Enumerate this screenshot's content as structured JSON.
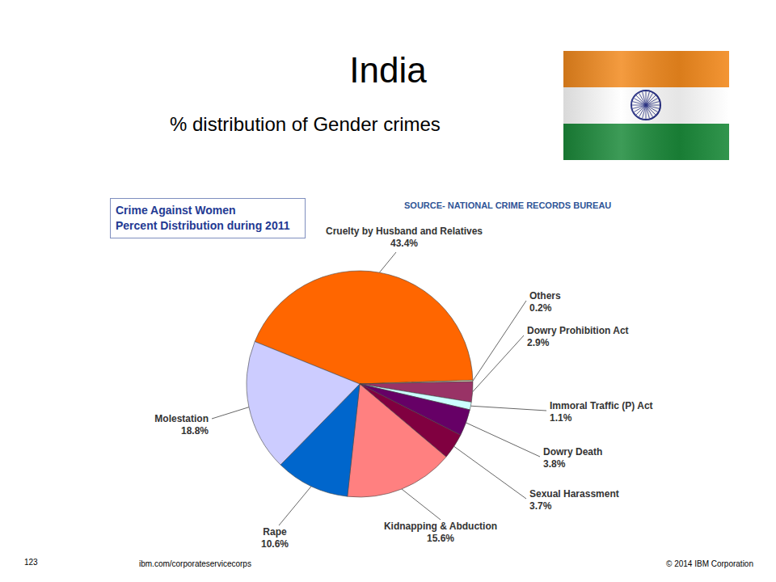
{
  "slide": {
    "title": "India",
    "subtitle": "% distribution of Gender crimes",
    "page": "123",
    "url": "ibm.com/corporateservicecorps",
    "copyright": "© 2014 IBM Corporation"
  },
  "chart_data": {
    "type": "pie",
    "title": [
      "Crime Against Women",
      "Percent Distribution during 2011"
    ],
    "source": "SOURCE- NATIONAL CRIME RECORDS BUREAU",
    "categories": [
      "Cruelty by Husband and Relatives",
      "Others",
      "Dowry Prohibition Act",
      "Immoral Traffic (P) Act",
      "Dowry Death",
      "Sexual Harassment",
      "Kidnapping & Abduction",
      "Rape",
      "Molestation"
    ],
    "values": [
      43.4,
      0.2,
      2.9,
      1.1,
      3.8,
      3.7,
      15.6,
      10.6,
      18.8
    ],
    "value_labels": [
      "43.4%",
      "0.2%",
      "2.9%",
      "1.1%",
      "3.8%",
      "3.7%",
      "15.6%",
      "10.6%",
      "18.8%"
    ],
    "colors": [
      "#ff6600",
      "#ffffcc",
      "#993366",
      "#ccffff",
      "#660066",
      "#800040",
      "#ff8080",
      "#0066cc",
      "#ccccff"
    ],
    "data_labels": true
  }
}
